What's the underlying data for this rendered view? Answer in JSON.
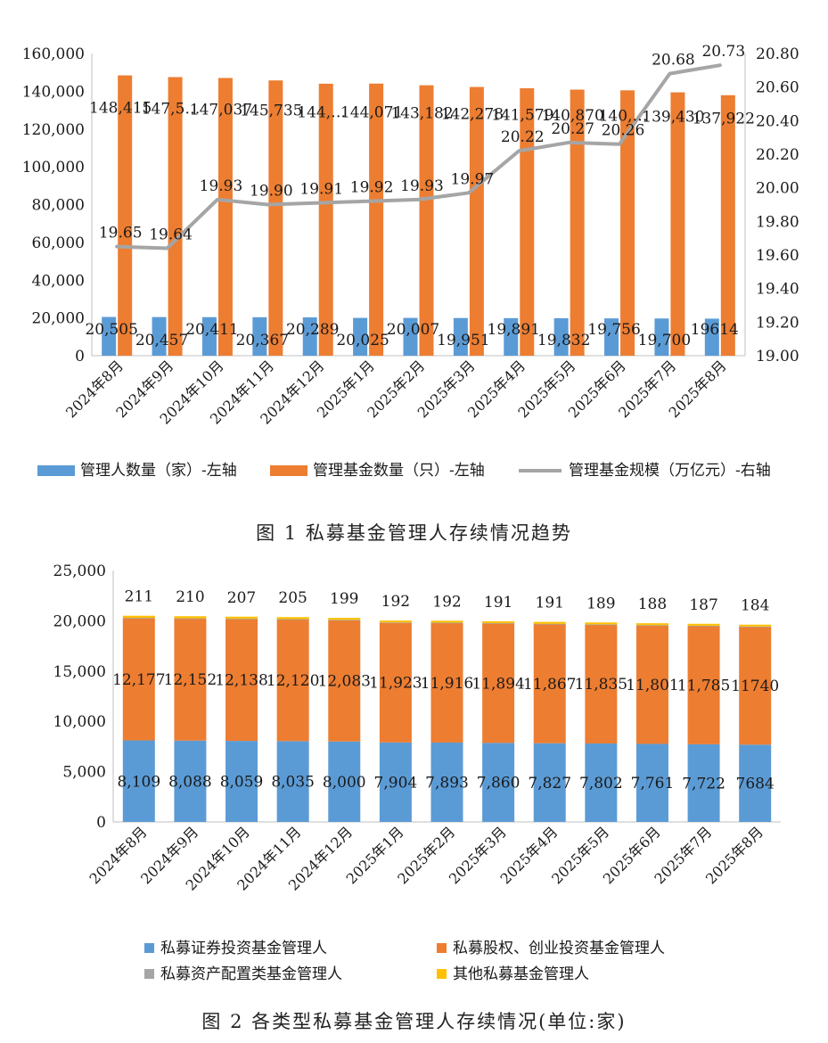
{
  "chart_data": [
    {
      "type": "bar",
      "subtype": "combo-bar-line",
      "caption": "图 1 私募基金管理人存续情况趋势",
      "categories": [
        "2024年8月",
        "2024年9月",
        "2024年10月",
        "2024年11月",
        "2024年12月",
        "2025年1月",
        "2025年2月",
        "2025年3月",
        "2025年4月",
        "2025年5月",
        "2025年6月",
        "2025年7月",
        "2025年8月"
      ],
      "series": [
        {
          "name": "管理人数量（家）-左轴",
          "type": "bar",
          "axis": "left",
          "color": "#5b9bd5",
          "values": [
            20505,
            20457,
            20411,
            20367,
            20289,
            20025,
            20007,
            19951,
            19891,
            19832,
            19756,
            19700,
            19614
          ],
          "labels": [
            "20,505",
            "20,457",
            "20,411",
            "20,367",
            "20,289",
            "20,025",
            "20,007",
            "19,951",
            "19,891",
            "19,832",
            "19,756",
            "19,700",
            "19614"
          ]
        },
        {
          "name": "管理基金数量（只）-左轴",
          "type": "bar",
          "axis": "left",
          "color": "#ed7d31",
          "values": [
            148415,
            147500,
            147037,
            145735,
            144000,
            144071,
            143182,
            142278,
            141579,
            140870,
            140500,
            139430,
            137922
          ],
          "labels": [
            "148,415",
            "147,5…",
            "147,037",
            "145,735",
            "144,…",
            "144,071",
            "143,182",
            "142,278",
            "141,579",
            "140,870",
            "140,…",
            "139,430",
            "137,922"
          ]
        },
        {
          "name": "管理基金规模（万亿元）-右轴",
          "type": "line",
          "axis": "right",
          "color": "#a5a5a5",
          "values": [
            19.65,
            19.64,
            19.93,
            19.9,
            19.91,
            19.92,
            19.93,
            19.97,
            20.22,
            20.27,
            20.26,
            20.68,
            20.73
          ],
          "labels": [
            "19.65",
            "19.64",
            "19.93",
            "19.90",
            "19.91",
            "19.92",
            "19.93",
            "19.97",
            "20.22",
            "20.27",
            "20.26",
            "20.68",
            "20.73"
          ]
        }
      ],
      "left_axis": {
        "ylim": [
          0,
          160000
        ],
        "ticks": [
          "0",
          "20,000",
          "40,000",
          "60,000",
          "80,000",
          "100,000",
          "120,000",
          "140,000",
          "160,000"
        ]
      },
      "right_axis": {
        "ylim": [
          19.0,
          20.8
        ],
        "ticks": [
          "19.00",
          "19.20",
          "19.40",
          "19.60",
          "19.80",
          "20.00",
          "20.20",
          "20.40",
          "20.60",
          "20.80"
        ]
      },
      "legend": "bottom",
      "grid": false
    },
    {
      "type": "bar",
      "subtype": "stacked",
      "caption": "图 2 各类型私募基金管理人存续情况(单位:家)",
      "categories": [
        "2024年8月",
        "2024年9月",
        "2024年10月",
        "2024年11月",
        "2024年12月",
        "2025年1月",
        "2025年2月",
        "2025年3月",
        "2025年4月",
        "2025年5月",
        "2025年6月",
        "2025年7月",
        "2025年8月"
      ],
      "series": [
        {
          "name": "私募证券投资基金管理人",
          "color": "#5b9bd5",
          "values": [
            8109,
            8088,
            8059,
            8035,
            8000,
            7904,
            7893,
            7860,
            7827,
            7802,
            7761,
            7722,
            7684
          ],
          "labels": [
            "8,109",
            "8,088",
            "8,059",
            "8,035",
            "8,000",
            "7,904",
            "7,893",
            "7,860",
            "7,827",
            "7,802",
            "7,761",
            "7,722",
            "7684"
          ]
        },
        {
          "name": "私募股权、创业投资基金管理人",
          "color": "#ed7d31",
          "values": [
            12177,
            12152,
            12138,
            12120,
            12083,
            11923,
            11916,
            11894,
            11867,
            11835,
            11801,
            11785,
            11740
          ],
          "labels": [
            "12,177",
            "12,152",
            "12,138",
            "12,120",
            "12,083",
            "11,923",
            "11,916",
            "11,894",
            "11,867",
            "11,835",
            "11,801",
            "11,785",
            "11740"
          ]
        },
        {
          "name": "私募资产配置类基金管理人",
          "color": "#a5a5a5",
          "values": [
            8,
            8,
            8,
            8,
            8,
            8,
            8,
            8,
            8,
            8,
            8,
            8,
            8
          ]
        },
        {
          "name": "其他私募基金管理人",
          "color": "#ffc000",
          "values": [
            211,
            210,
            207,
            205,
            199,
            192,
            192,
            191,
            191,
            189,
            188,
            187,
            184
          ],
          "labels": [
            "211",
            "210",
            "207",
            "205",
            "199",
            "192",
            "192",
            "191",
            "191",
            "189",
            "188",
            "187",
            "184"
          ]
        }
      ],
      "ylim": [
        0,
        25000
      ],
      "ticks": [
        "0",
        "5,000",
        "10,000",
        "15,000",
        "20,000",
        "25,000"
      ],
      "legend": "bottom",
      "grid": false
    }
  ]
}
